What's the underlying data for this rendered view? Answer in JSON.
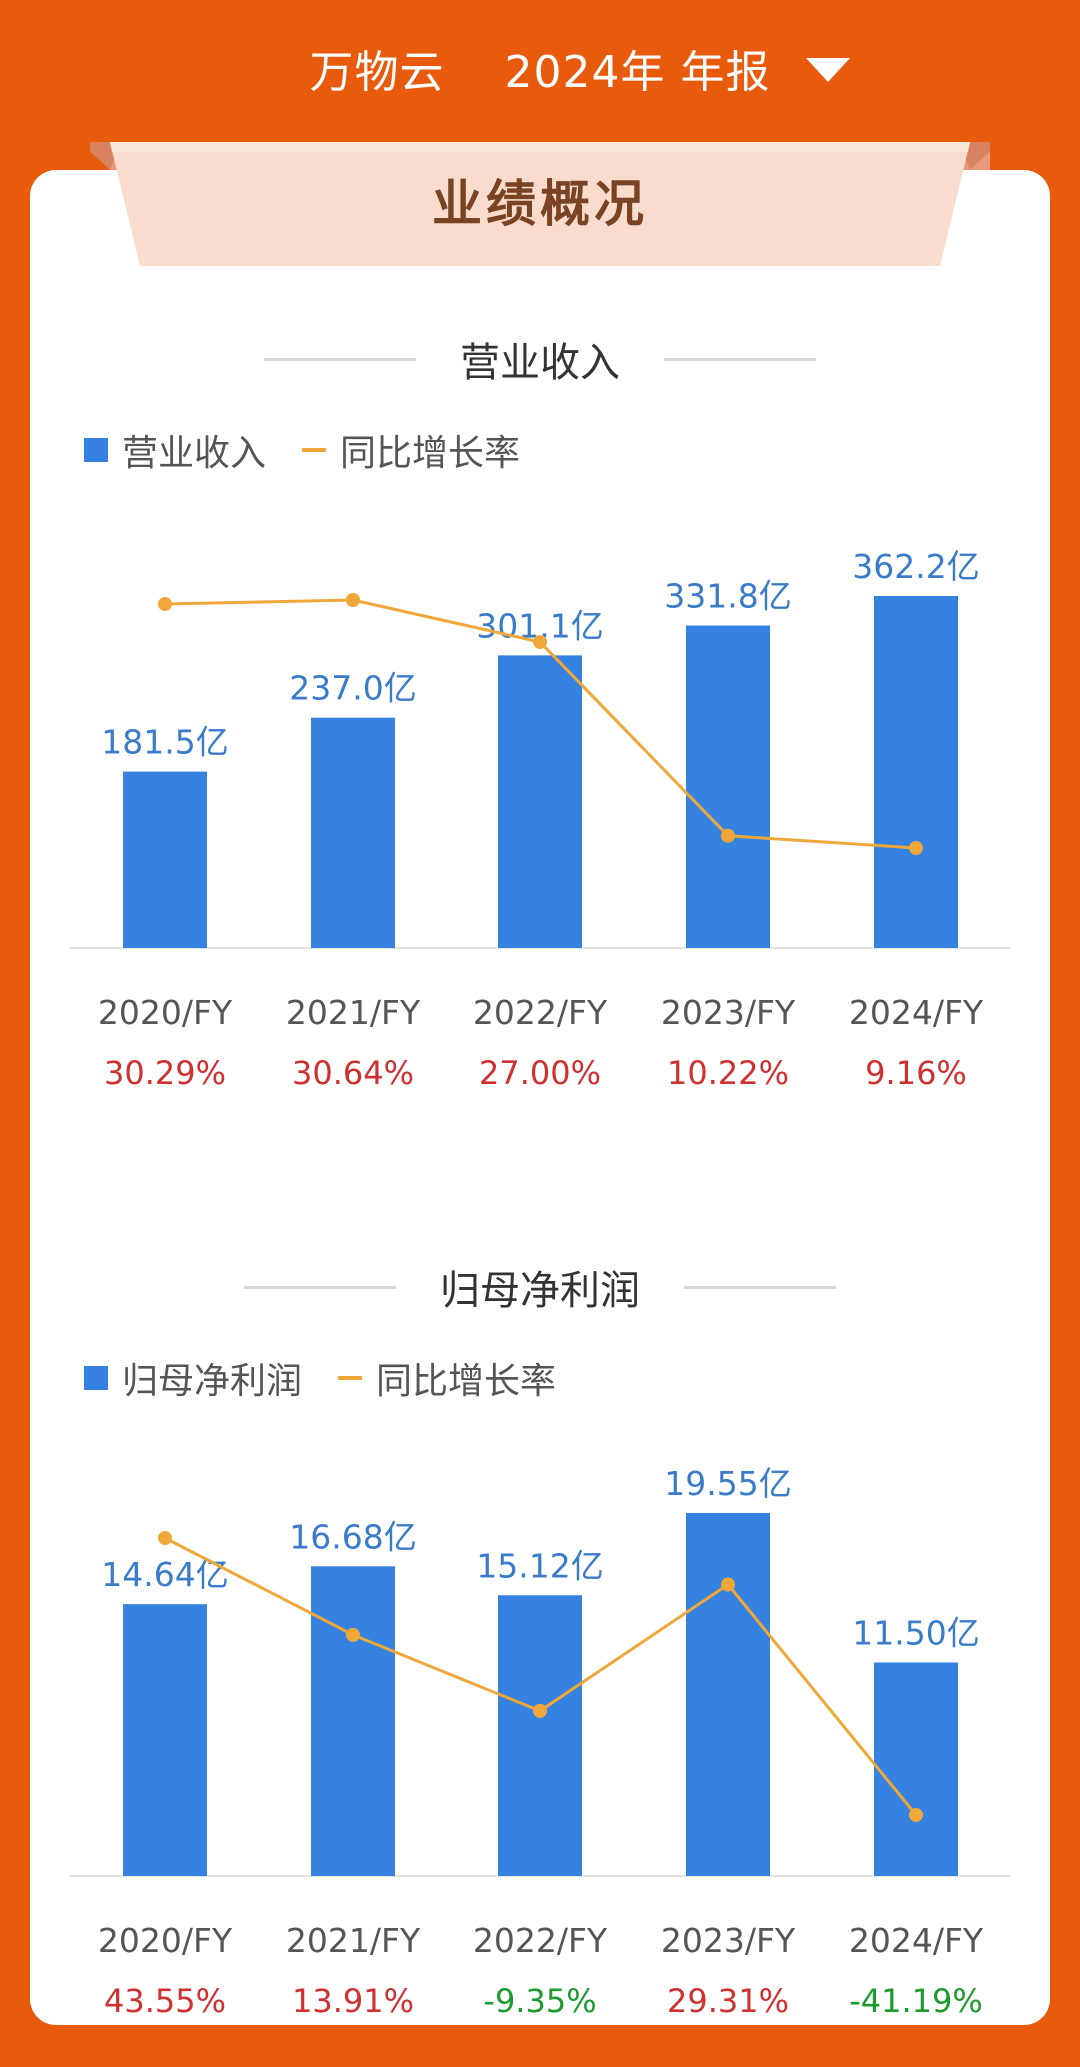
{
  "header": {
    "company": "万物云",
    "report": "2024年 年报"
  },
  "card": {
    "title": "业绩概况"
  },
  "chart_data": [
    {
      "type": "bar",
      "section_title": "营业收入",
      "legend": {
        "bar": "营业收入",
        "line": "同比增长率"
      },
      "categories": [
        "2020/FY",
        "2021/FY",
        "2022/FY",
        "2023/FY",
        "2024/FY"
      ],
      "values": [
        181.5,
        237.0,
        301.1,
        331.8,
        362.2
      ],
      "value_labels": [
        "181.5亿",
        "237.0亿",
        "301.1亿",
        "331.8亿",
        "362.2亿"
      ],
      "growth": [
        30.29,
        30.64,
        27.0,
        10.22,
        9.16
      ],
      "growth_labels": [
        "30.29%",
        "30.64%",
        "27.00%",
        "10.22%",
        "9.16%"
      ],
      "growth_colors": [
        "#D03030",
        "#D03030",
        "#D03030",
        "#D03030",
        "#D03030"
      ],
      "bar_color": "#3682E0",
      "line_color": "#F0A73A"
    },
    {
      "type": "bar",
      "section_title": "归母净利润",
      "legend": {
        "bar": "归母净利润",
        "line": "同比增长率"
      },
      "categories": [
        "2020/FY",
        "2021/FY",
        "2022/FY",
        "2023/FY",
        "2024/FY"
      ],
      "values": [
        14.64,
        16.68,
        15.12,
        19.55,
        11.5
      ],
      "value_labels": [
        "14.64亿",
        "16.68亿",
        "15.12亿",
        "19.55亿",
        "11.50亿"
      ],
      "growth": [
        43.55,
        13.91,
        -9.35,
        29.31,
        -41.19
      ],
      "growth_labels": [
        "43.55%",
        "13.91%",
        "-9.35%",
        "29.31%",
        "-41.19%"
      ],
      "growth_colors": [
        "#D03030",
        "#D03030",
        "#1E9A2E",
        "#D03030",
        "#1E9A2E"
      ],
      "bar_color": "#3682E0",
      "line_color": "#F0A73A"
    }
  ]
}
